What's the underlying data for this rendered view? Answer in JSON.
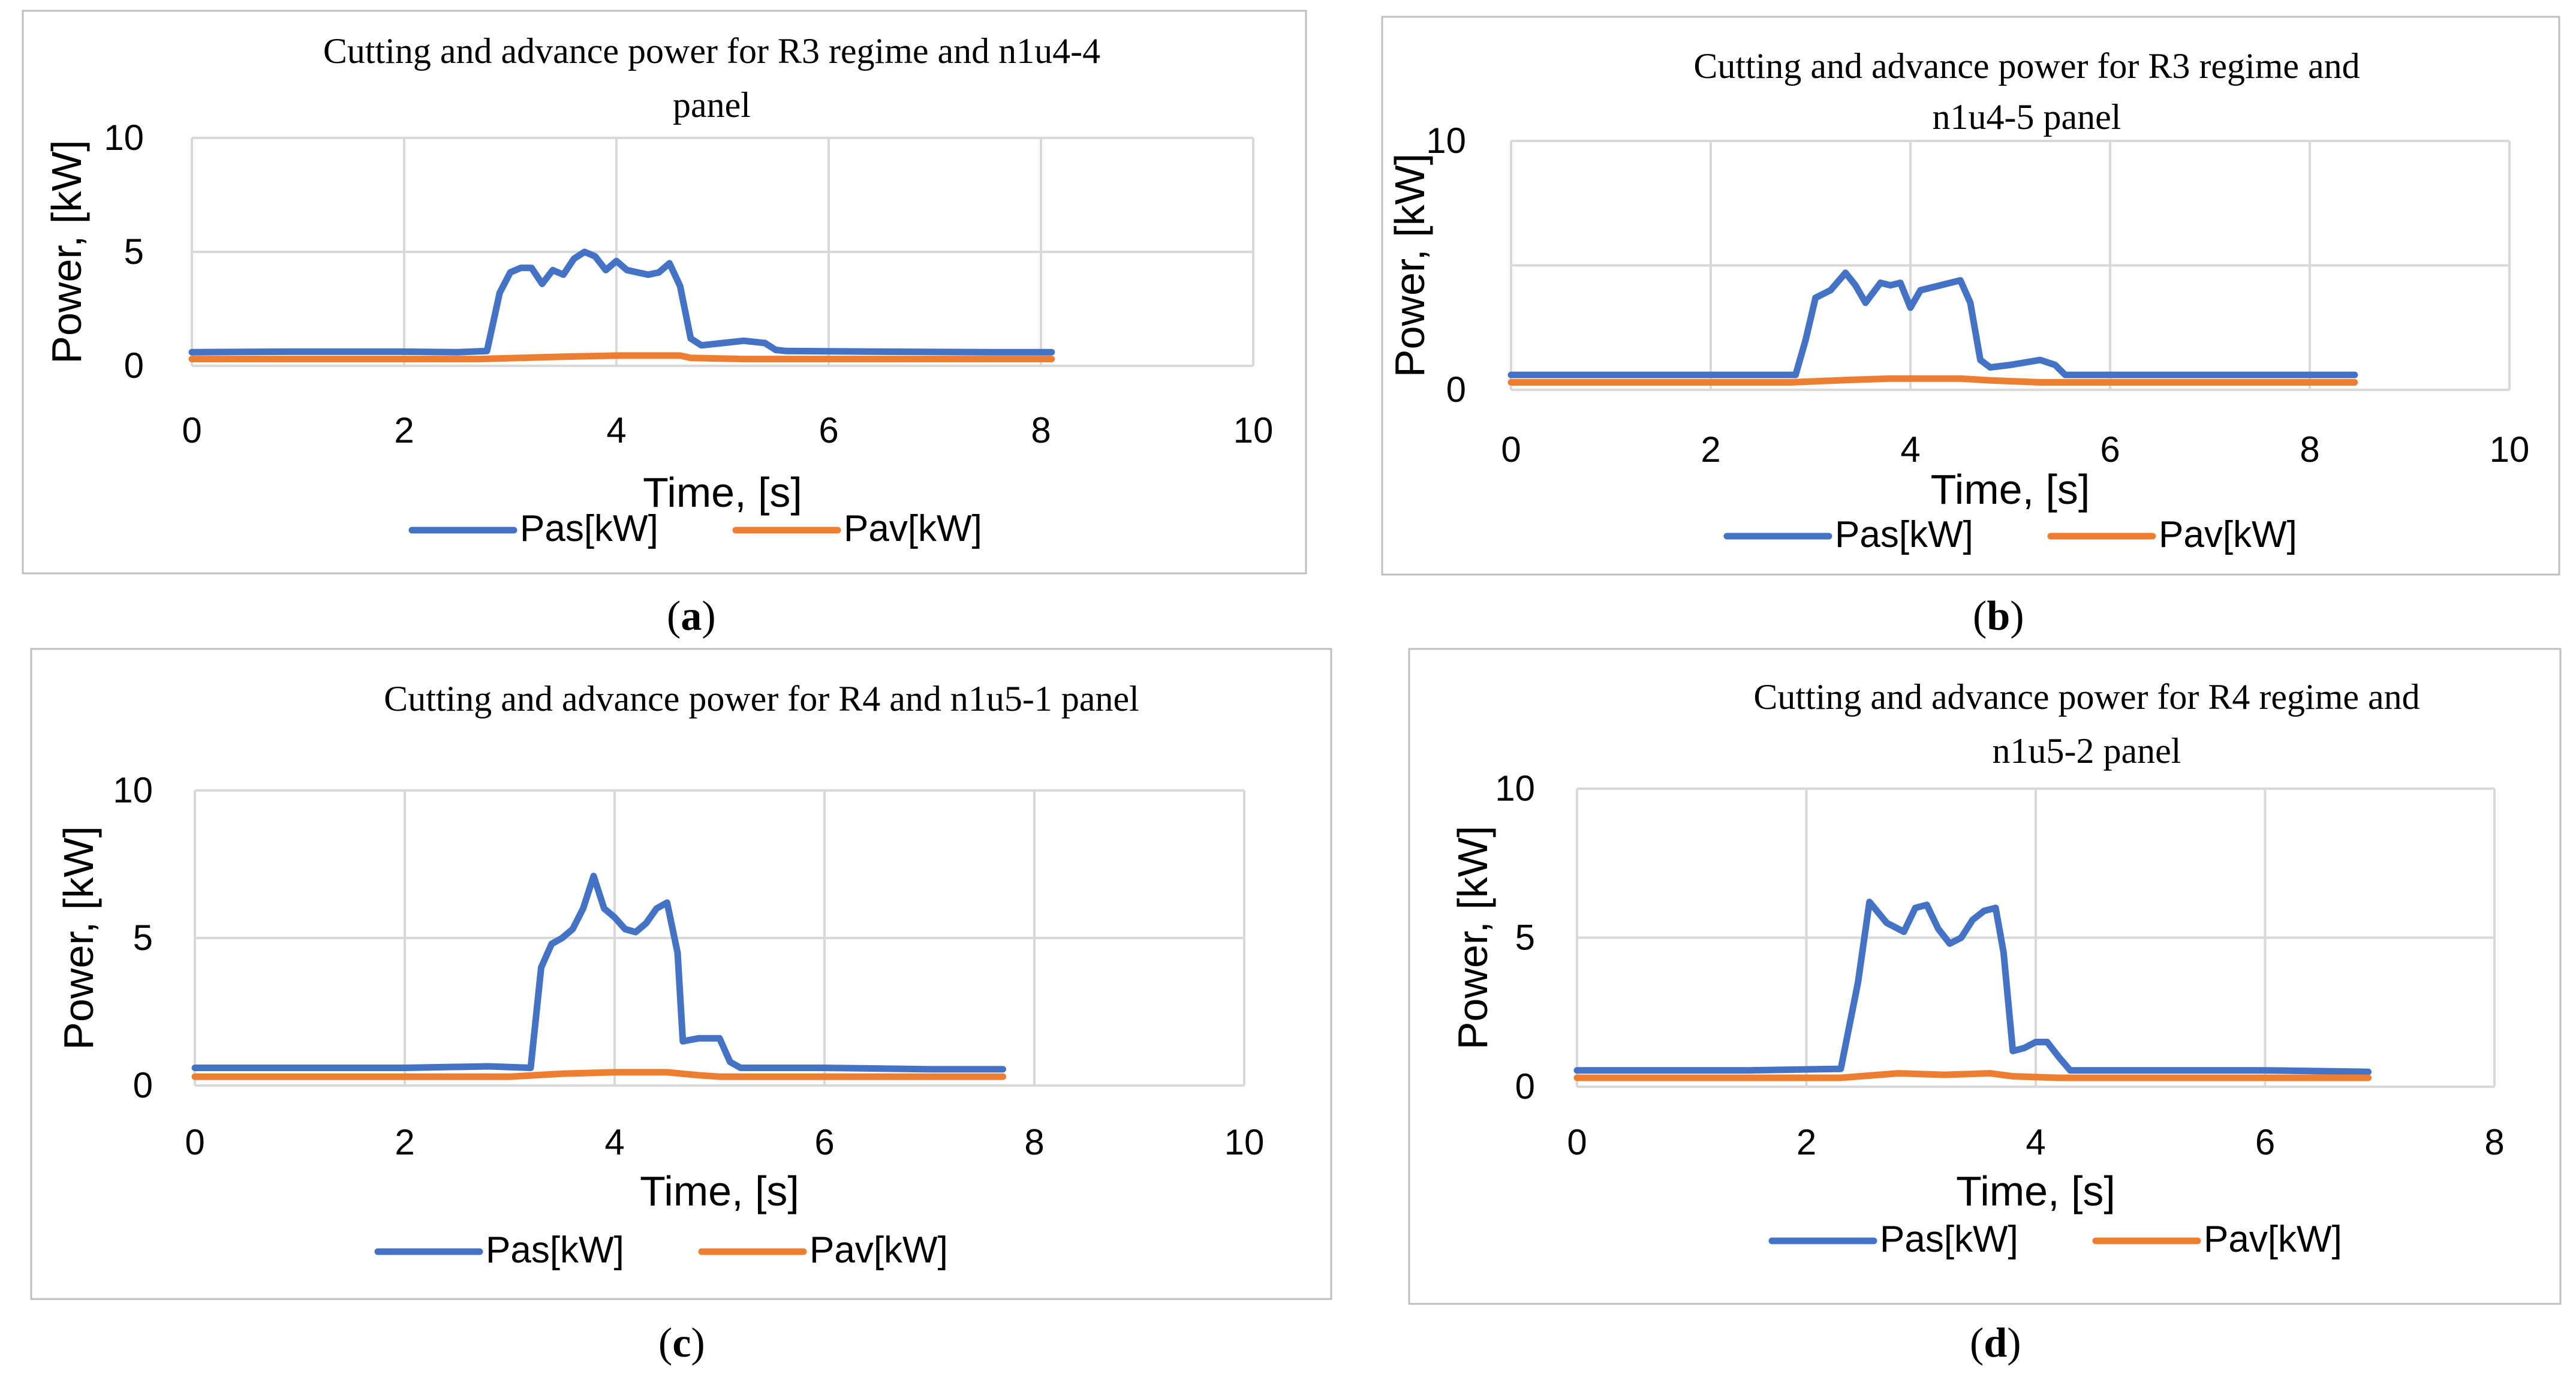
{
  "colors": {
    "pas": "#4472C4",
    "pav": "#ED7D31",
    "grid": "#D9D9D9",
    "frame": "#BFBFBF",
    "text": "#000000"
  },
  "chart_data": [
    {
      "type": "line",
      "panel_label": {
        "open": "(",
        "letter": "a",
        "close": ")"
      },
      "title_lines": [
        "Cutting and advance power for R3 regime and n1u4-4",
        "panel"
      ],
      "xlabel": "Time, [s]",
      "ylabel": "Power, [kW]",
      "xlim": [
        0,
        10
      ],
      "ylim": [
        0,
        10
      ],
      "x_ticks": [
        "0",
        "2",
        "4",
        "6",
        "8",
        "10"
      ],
      "y_ticks": [
        "0",
        "5",
        "10"
      ],
      "grid": true,
      "legend": "bottom",
      "series": [
        {
          "name": "Pas[kW]",
          "x": [
            0,
            0.9,
            2.0,
            2.5,
            2.78,
            2.9,
            3.0,
            3.1,
            3.2,
            3.3,
            3.4,
            3.5,
            3.6,
            3.7,
            3.8,
            3.9,
            4.0,
            4.1,
            4.2,
            4.3,
            4.4,
            4.5,
            4.6,
            4.7,
            4.8,
            5.0,
            5.2,
            5.4,
            5.5,
            5.6,
            6.5,
            7.5,
            8.1
          ],
          "y": [
            0.6,
            0.62,
            0.62,
            0.6,
            0.65,
            3.2,
            4.1,
            4.3,
            4.3,
            3.6,
            4.2,
            4.0,
            4.7,
            5.0,
            4.8,
            4.2,
            4.6,
            4.2,
            4.1,
            4.0,
            4.1,
            4.5,
            3.5,
            1.2,
            0.9,
            1.0,
            1.1,
            1.0,
            0.7,
            0.65,
            0.62,
            0.6,
            0.6
          ]
        },
        {
          "name": "Pav[kW]",
          "x": [
            0,
            2.7,
            3.5,
            4.0,
            4.6,
            4.7,
            5.2,
            8.1
          ],
          "y": [
            0.3,
            0.3,
            0.4,
            0.45,
            0.45,
            0.35,
            0.3,
            0.3
          ]
        }
      ]
    },
    {
      "type": "line",
      "panel_label": {
        "open": "(",
        "letter": "b",
        "close": ")"
      },
      "title_lines": [
        "Cutting and advance power for R3 regime and",
        "n1u4-5 panel"
      ],
      "xlabel": "Time, [s]",
      "ylabel": "Power, [kW]",
      "xlim": [
        0,
        10
      ],
      "ylim": [
        0,
        10
      ],
      "x_ticks": [
        "0",
        "2",
        "4",
        "6",
        "8",
        "10"
      ],
      "y_ticks": [
        "0",
        "",
        "10"
      ],
      "grid": true,
      "legend": "bottom",
      "series": [
        {
          "name": "Pas[kW]",
          "x": [
            0,
            2.0,
            2.85,
            2.95,
            3.05,
            3.2,
            3.35,
            3.45,
            3.55,
            3.7,
            3.8,
            3.9,
            4.0,
            4.1,
            4.2,
            4.4,
            4.5,
            4.6,
            4.7,
            4.8,
            5.0,
            5.3,
            5.45,
            5.55,
            6.5,
            8.45
          ],
          "y": [
            0.6,
            0.6,
            0.6,
            2.0,
            3.7,
            4.0,
            4.7,
            4.2,
            3.5,
            4.3,
            4.2,
            4.3,
            3.3,
            4.0,
            4.1,
            4.3,
            4.4,
            3.5,
            1.2,
            0.9,
            1.0,
            1.2,
            1.0,
            0.6,
            0.6,
            0.6
          ]
        },
        {
          "name": "Pav[kW]",
          "x": [
            0,
            2.8,
            3.4,
            3.8,
            4.5,
            4.8,
            5.3,
            8.45
          ],
          "y": [
            0.3,
            0.3,
            0.4,
            0.45,
            0.45,
            0.38,
            0.3,
            0.3
          ]
        }
      ]
    },
    {
      "type": "line",
      "panel_label": {
        "open": "(",
        "letter": "c",
        "close": ")"
      },
      "title_lines": [
        "Cutting and advance power for R4 and n1u5-1 panel"
      ],
      "xlabel": "Time, [s]",
      "ylabel": "Power, [kW]",
      "xlim": [
        0,
        10
      ],
      "ylim": [
        0,
        10
      ],
      "x_ticks": [
        "0",
        "2",
        "4",
        "6",
        "8",
        "10"
      ],
      "y_ticks": [
        "0",
        "5",
        "10"
      ],
      "grid": true,
      "legend": "bottom",
      "series": [
        {
          "name": "Pas[kW]",
          "x": [
            0,
            2.0,
            2.8,
            3.2,
            3.3,
            3.4,
            3.5,
            3.6,
            3.7,
            3.8,
            3.9,
            4.0,
            4.1,
            4.2,
            4.3,
            4.4,
            4.5,
            4.6,
            4.65,
            4.8,
            5.0,
            5.1,
            5.2,
            6.0,
            7.0,
            7.7
          ],
          "y": [
            0.6,
            0.6,
            0.65,
            0.6,
            4.0,
            4.8,
            5.0,
            5.3,
            6.0,
            7.1,
            6.0,
            5.7,
            5.3,
            5.2,
            5.5,
            6.0,
            6.2,
            4.5,
            1.5,
            1.6,
            1.6,
            0.8,
            0.6,
            0.6,
            0.55,
            0.55
          ]
        },
        {
          "name": "Pav[kW]",
          "x": [
            0,
            3.0,
            3.5,
            4.0,
            4.5,
            4.8,
            5.0,
            7.7
          ],
          "y": [
            0.3,
            0.3,
            0.4,
            0.45,
            0.45,
            0.35,
            0.3,
            0.3
          ]
        }
      ]
    },
    {
      "type": "line",
      "panel_label": {
        "open": "(",
        "letter": "d",
        "close": ")"
      },
      "title_lines": [
        "Cutting and advance power for R4 regime and",
        "n1u5-2 panel"
      ],
      "xlabel": "Time, [s]",
      "ylabel": "Power, [kW]",
      "xlim": [
        0,
        8
      ],
      "ylim": [
        0,
        10
      ],
      "x_ticks": [
        "0",
        "2",
        "4",
        "6",
        "8"
      ],
      "y_ticks": [
        "0",
        "5",
        "10"
      ],
      "grid": true,
      "legend": "bottom",
      "series": [
        {
          "name": "Pas[kW]",
          "x": [
            0,
            1.5,
            2.3,
            2.45,
            2.55,
            2.7,
            2.85,
            2.95,
            3.05,
            3.15,
            3.25,
            3.35,
            3.45,
            3.55,
            3.65,
            3.72,
            3.8,
            3.9,
            4.0,
            4.1,
            4.2,
            4.3,
            5.0,
            6.0,
            6.9
          ],
          "y": [
            0.55,
            0.55,
            0.6,
            3.5,
            6.2,
            5.5,
            5.2,
            6.0,
            6.1,
            5.3,
            4.8,
            5.0,
            5.6,
            5.9,
            6.0,
            4.5,
            1.2,
            1.3,
            1.5,
            1.5,
            1.0,
            0.55,
            0.55,
            0.55,
            0.5
          ]
        },
        {
          "name": "Pav[kW]",
          "x": [
            0,
            2.3,
            2.8,
            3.2,
            3.6,
            3.8,
            4.2,
            6.9
          ],
          "y": [
            0.3,
            0.3,
            0.45,
            0.4,
            0.45,
            0.35,
            0.3,
            0.3
          ]
        }
      ]
    }
  ]
}
